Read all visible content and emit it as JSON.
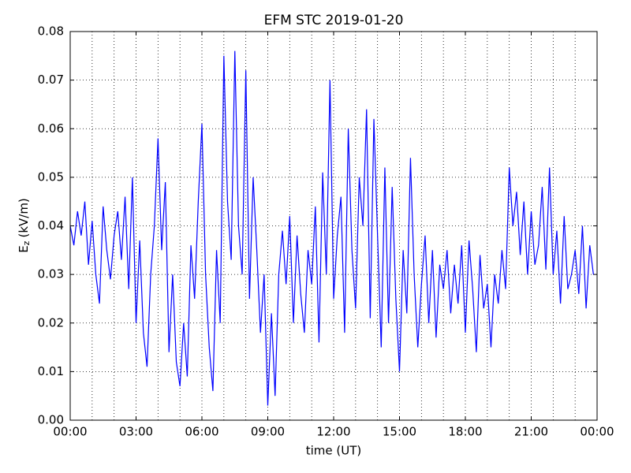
{
  "chart_data": {
    "type": "line",
    "title": "EFM STC    2019-01-20",
    "xlabel": "time (UT)",
    "ylabel": {
      "base": "E",
      "sub": "z",
      "unit": "(kV/m)"
    },
    "xlim": [
      0,
      1440
    ],
    "xticks": [
      {
        "value": 0,
        "label": "00:00"
      },
      {
        "value": 180,
        "label": "03:00"
      },
      {
        "value": 360,
        "label": "06:00"
      },
      {
        "value": 540,
        "label": "09:00"
      },
      {
        "value": 720,
        "label": "12:00"
      },
      {
        "value": 900,
        "label": "15:00"
      },
      {
        "value": 1080,
        "label": "18:00"
      },
      {
        "value": 1260,
        "label": "21:00"
      },
      {
        "value": 1440,
        "label": "00:00"
      }
    ],
    "xminor": [
      60,
      120,
      240,
      300,
      420,
      480,
      600,
      660,
      780,
      840,
      960,
      1020,
      1140,
      1200,
      1320,
      1380
    ],
    "ylim": [
      0,
      0.08
    ],
    "yticks": [
      {
        "value": 0,
        "label": "0.00"
      },
      0.01,
      0.02,
      0.03,
      0.04,
      0.05,
      0.06,
      0.07,
      0.08
    ],
    "grid": true,
    "series": [
      {
        "color": "#0000ff",
        "x": [
          0,
          10,
          20,
          30,
          40,
          50,
          60,
          70,
          80,
          90,
          100,
          110,
          120,
          130,
          140,
          150,
          160,
          170,
          180,
          190,
          200,
          210,
          220,
          230,
          240,
          250,
          260,
          270,
          280,
          290,
          300,
          310,
          320,
          330,
          340,
          350,
          360,
          370,
          380,
          390,
          400,
          410,
          420,
          430,
          440,
          450,
          460,
          470,
          480,
          490,
          500,
          510,
          520,
          530,
          540,
          550,
          560,
          570,
          580,
          590,
          600,
          610,
          620,
          630,
          640,
          650,
          660,
          670,
          680,
          690,
          700,
          710,
          720,
          730,
          740,
          750,
          760,
          770,
          780,
          790,
          800,
          810,
          820,
          830,
          840,
          850,
          860,
          870,
          880,
          890,
          900,
          910,
          920,
          930,
          940,
          950,
          960,
          970,
          980,
          990,
          1000,
          1010,
          1020,
          1030,
          1040,
          1050,
          1060,
          1070,
          1080,
          1090,
          1100,
          1110,
          1120,
          1130,
          1140,
          1150,
          1160,
          1170,
          1180,
          1190,
          1200,
          1210,
          1220,
          1230,
          1240,
          1250,
          1260,
          1270,
          1280,
          1290,
          1300,
          1310,
          1320,
          1330,
          1340,
          1350,
          1360,
          1370,
          1380,
          1390,
          1400,
          1410,
          1420,
          1430
        ],
        "values": [
          0.04,
          0.036,
          0.043,
          0.038,
          0.045,
          0.032,
          0.041,
          0.03,
          0.024,
          0.044,
          0.035,
          0.029,
          0.038,
          0.043,
          0.033,
          0.046,
          0.027,
          0.05,
          0.02,
          0.037,
          0.018,
          0.011,
          0.03,
          0.04,
          0.058,
          0.035,
          0.049,
          0.014,
          0.03,
          0.012,
          0.007,
          0.02,
          0.009,
          0.036,
          0.025,
          0.045,
          0.061,
          0.03,
          0.015,
          0.006,
          0.035,
          0.02,
          0.075,
          0.045,
          0.033,
          0.076,
          0.04,
          0.03,
          0.072,
          0.025,
          0.05,
          0.035,
          0.018,
          0.03,
          0.003,
          0.022,
          0.005,
          0.03,
          0.039,
          0.028,
          0.042,
          0.02,
          0.038,
          0.026,
          0.018,
          0.035,
          0.028,
          0.044,
          0.016,
          0.051,
          0.03,
          0.07,
          0.025,
          0.038,
          0.046,
          0.018,
          0.06,
          0.035,
          0.023,
          0.05,
          0.04,
          0.064,
          0.021,
          0.062,
          0.038,
          0.015,
          0.052,
          0.02,
          0.048,
          0.025,
          0.01,
          0.035,
          0.022,
          0.054,
          0.03,
          0.015,
          0.028,
          0.038,
          0.02,
          0.035,
          0.017,
          0.032,
          0.027,
          0.035,
          0.022,
          0.032,
          0.024,
          0.036,
          0.018,
          0.037,
          0.027,
          0.014,
          0.034,
          0.023,
          0.028,
          0.015,
          0.03,
          0.024,
          0.035,
          0.027,
          0.052,
          0.04,
          0.047,
          0.034,
          0.045,
          0.03,
          0.043,
          0.032,
          0.036,
          0.048,
          0.031,
          0.052,
          0.03,
          0.039,
          0.024,
          0.042,
          0.027,
          0.03,
          0.035,
          0.026,
          0.04,
          0.023,
          0.036,
          0.03
        ]
      }
    ]
  }
}
